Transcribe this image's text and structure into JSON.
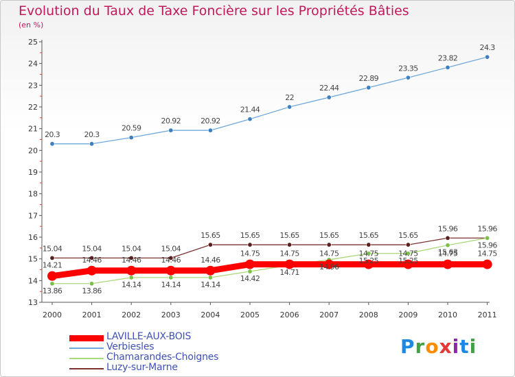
{
  "header": {
    "title": "Evolution du Taux de Taxe Foncière sur les Propriétés Bâties",
    "unit": "(en %)"
  },
  "colors": {
    "title": "#c2185b",
    "legend_text": "#3f51b5"
  },
  "logo": {
    "text": "Proxiti",
    "letters": [
      {
        "ch": "P",
        "color": "#1e88e5"
      },
      {
        "ch": "r",
        "color": "#43a047"
      },
      {
        "ch": "o",
        "color": "#fb8c00"
      },
      {
        "ch": "x",
        "color": "#e53935"
      },
      {
        "ch": "i",
        "color": "#8e24aa"
      },
      {
        "ch": "t",
        "color": "#1e88e5"
      },
      {
        "ch": "i",
        "color": "#43a047"
      }
    ]
  },
  "chart_data": {
    "type": "line",
    "title": "Evolution du Taux de Taxe Foncière sur les Propriétés Bâties",
    "ylabel": "(en %)",
    "ylim": [
      13,
      25
    ],
    "yticks": [
      "13",
      "14",
      "15",
      "16",
      "17",
      "18",
      "19",
      "20",
      "21",
      "22",
      "23",
      "24",
      "25"
    ],
    "x": [
      "2000",
      "2001",
      "2002",
      "2003",
      "2004",
      "2005",
      "2006",
      "2007",
      "2008",
      "2009",
      "2010",
      "2011"
    ],
    "grid": false,
    "legend_position": "bottom-left",
    "series": [
      {
        "name": "LAVILLE-AUX-BOIS",
        "color": "#ff0000",
        "values": [
          14.21,
          14.46,
          14.46,
          14.46,
          14.46,
          14.75,
          14.75,
          14.75,
          14.75,
          14.75,
          14.75,
          14.75
        ],
        "labels": [
          "14.21",
          "14.46",
          "14.46",
          "14.46",
          "14.46",
          "14.75",
          "14.75",
          "14.75",
          "14.75",
          "14.75",
          "14.75",
          "14.75"
        ]
      },
      {
        "name": "Verbiesles",
        "color": "#6fa8dc",
        "values": [
          20.3,
          20.3,
          20.59,
          20.92,
          20.92,
          21.44,
          22.0,
          22.44,
          22.89,
          23.35,
          23.82,
          24.3
        ],
        "labels": [
          "20.3",
          "20.3",
          "20.59",
          "20.92",
          "20.92",
          "21.44",
          "22",
          "22.44",
          "22.89",
          "23.35",
          "23.82",
          "24.3"
        ]
      },
      {
        "name": "Chamarandes-Choignes",
        "color": "#a8d878",
        "values": [
          13.86,
          13.86,
          14.14,
          14.14,
          14.14,
          14.42,
          14.71,
          14.96,
          15.25,
          15.25,
          15.63,
          15.96
        ],
        "labels": [
          "13.86",
          "13.86",
          "14.14",
          "14.14",
          "14.14",
          "14.42",
          "14.71",
          "14.96",
          "15.25",
          "15.25",
          "15.63",
          "15.96"
        ]
      },
      {
        "name": "Luzy-sur-Marne",
        "color": "#7b3030",
        "values": [
          15.04,
          15.04,
          15.04,
          15.04,
          15.65,
          15.65,
          15.65,
          15.65,
          15.65,
          15.65,
          15.96,
          15.96
        ],
        "labels": [
          "15.04",
          "15.04",
          "15.04",
          "15.04",
          "15.65",
          "15.65",
          "15.65",
          "15.65",
          "15.65",
          "15.65",
          "15.96",
          "15.96"
        ]
      }
    ]
  }
}
